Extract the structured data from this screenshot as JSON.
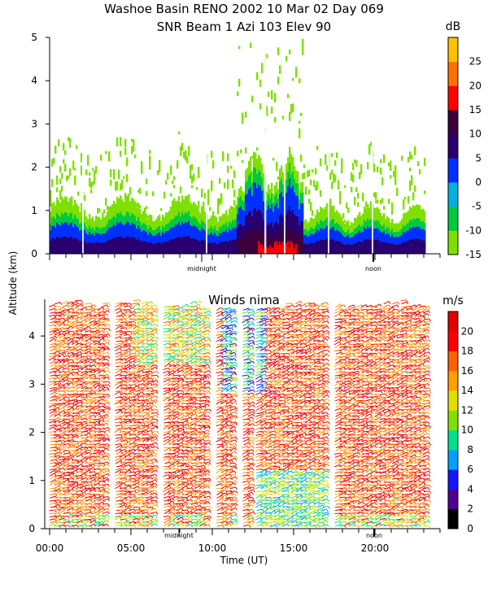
{
  "title": {
    "line1": "Washoe Basin RENO 2002  10 Mar 02 Day 069",
    "line2": "SNR Beam 1 Azi 103 Elev 90"
  },
  "y_axis_label": "Altitude (km)",
  "x_axis_label": "Time (UT)",
  "markers": {
    "midnight": "midnight",
    "noon": "noon"
  },
  "chart_data": [
    {
      "type": "heatmap",
      "name": "snr",
      "title": "",
      "ylabel": "Altitude (km)",
      "ylim": [
        0,
        5
      ],
      "yticks": [
        "0",
        "1",
        "2",
        "3",
        "4",
        "5"
      ],
      "xlim": [
        0,
        24
      ],
      "colorbar": {
        "unit": "dB",
        "range": [
          -15,
          30
        ],
        "tick_labels": [
          "25",
          "20",
          "15",
          "10",
          "5",
          "0",
          "-5",
          "-10",
          "-15"
        ],
        "colors": [
          "#7ee000",
          "#00c840",
          "#00b0e0",
          "#0030ff",
          "#280070",
          "#3c003c",
          "#ff0000",
          "#ff7000",
          "#ffc000"
        ]
      },
      "description_layers": [
        {
          "x": [
            0,
            11.5
          ],
          "top_km": [
            1.0,
            0.8
          ],
          "level_db": 5
        },
        {
          "x": [
            11.5,
            15.5
          ],
          "top_km": [
            1.7,
            1.7
          ],
          "level_db": 15
        },
        {
          "x": [
            15.5,
            23
          ],
          "top_km": [
            0.9,
            0.9
          ],
          "level_db": 5
        }
      ]
    },
    {
      "type": "scatter",
      "name": "winds",
      "title": "Winds nima",
      "xlabel": "Time (UT)",
      "ylabel": "Altitude (km)",
      "ylim": [
        0,
        5
      ],
      "yticks": [
        "0",
        "1",
        "2",
        "3",
        "4"
      ],
      "xlim": [
        0,
        24
      ],
      "xticks": [
        "00:00",
        "05:00",
        "10:00",
        "15:00",
        "20:00"
      ],
      "colorbar": {
        "unit": "m/s",
        "range": [
          0,
          22
        ],
        "tick_labels": [
          "20",
          "18",
          "16",
          "14",
          "12",
          "10",
          "8",
          "6",
          "4",
          "2",
          "0"
        ],
        "colors": [
          "#000000",
          "#500090",
          "#1414ff",
          "#00a0ff",
          "#00e090",
          "#80e000",
          "#e0e000",
          "#ffa000",
          "#ff6000",
          "#ff0000",
          "#e00000"
        ]
      }
    }
  ]
}
